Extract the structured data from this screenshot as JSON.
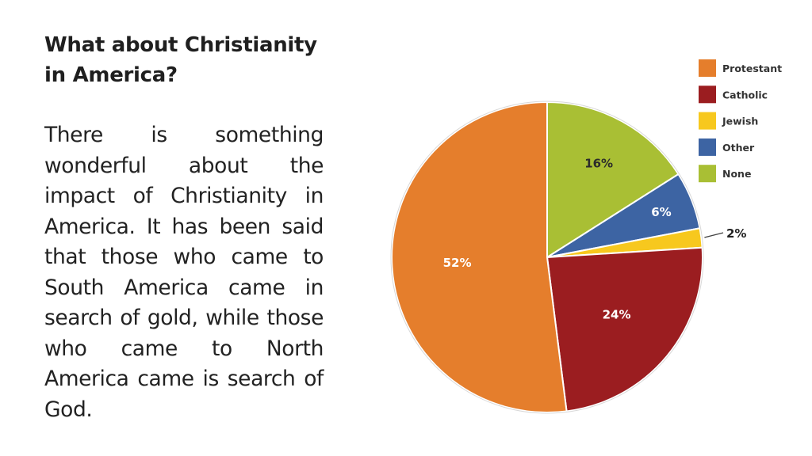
{
  "slide": {
    "title_line1": "What about Christianity",
    "title_line2": "in America?",
    "body": "There is something wonderful about the impact of Christianity in America. It has been said that those who came to South America came in search of gold, while those who came to North America came is search of God."
  },
  "chart_data": {
    "type": "pie",
    "title": "",
    "legend_position": "top-right",
    "slices": [
      {
        "label": "None",
        "value": 16,
        "display": "16%",
        "color": "#a9bf34"
      },
      {
        "label": "Other",
        "value": 6,
        "display": "6%",
        "color": "#3d64a3"
      },
      {
        "label": "Jewish",
        "value": 2,
        "display": "2%",
        "color": "#f7c81e"
      },
      {
        "label": "Catholic",
        "value": 24,
        "display": "24%",
        "color": "#9b1d20"
      },
      {
        "label": "Protestant",
        "value": 52,
        "display": "52%",
        "color": "#e57e2c"
      }
    ],
    "legend": [
      {
        "label": "Protestant",
        "color": "#e57e2c"
      },
      {
        "label": "Catholic",
        "color": "#9b1d20"
      },
      {
        "label": "Jewish",
        "color": "#f7c81e"
      },
      {
        "label": "Other",
        "color": "#3d64a3"
      },
      {
        "label": "None",
        "color": "#a9bf34"
      }
    ]
  }
}
